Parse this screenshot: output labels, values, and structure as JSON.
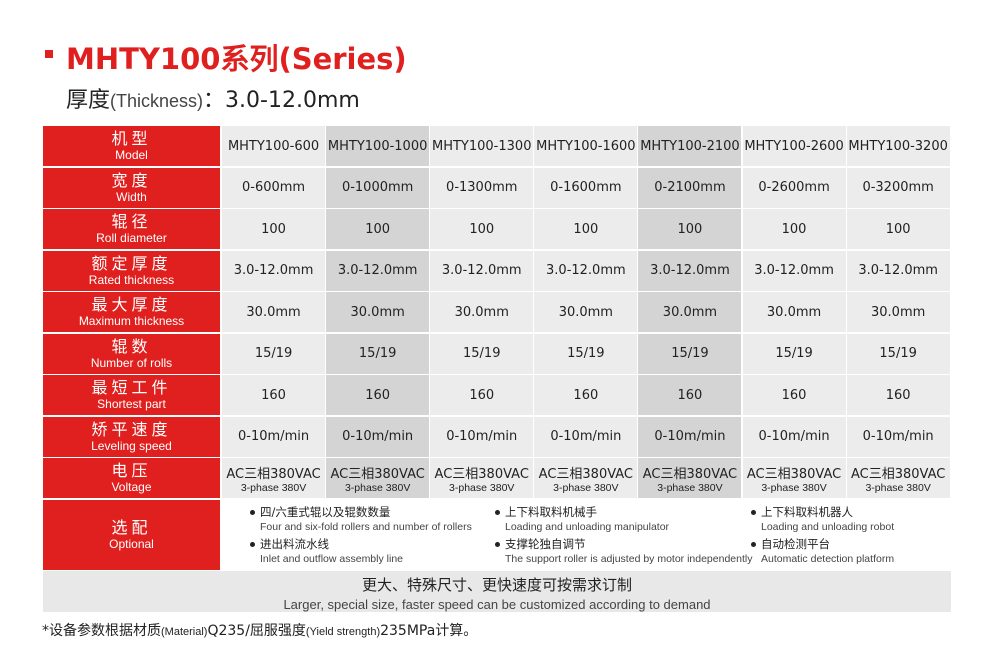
{
  "header": {
    "title": "MHTY100系列(Series)",
    "subtitle": {
      "zh": "厚度",
      "en": "(Thickness)",
      "value": "：3.0-12.0mm"
    }
  },
  "table": {
    "rows": [
      {
        "label_zh": "机型",
        "label_en": "Model",
        "cells": [
          "MHTY100-600",
          "MHTY100-1000",
          "MHTY100-1300",
          "MHTY100-1600",
          "MHTY100-2100",
          "MHTY100-2600",
          "MHTY100-3200"
        ]
      },
      {
        "label_zh": "宽度",
        "label_en": "Width",
        "cells": [
          "0-600mm",
          "0-1000mm",
          "0-1300mm",
          "0-1600mm",
          "0-2100mm",
          "0-2600mm",
          "0-3200mm"
        ]
      },
      {
        "label_zh": "辊径",
        "label_en": "Roll diameter",
        "cells": [
          "100",
          "100",
          "100",
          "100",
          "100",
          "100",
          "100"
        ]
      },
      {
        "label_zh": "额定厚度",
        "label_en": "Rated thickness",
        "cells": [
          "3.0-12.0mm",
          "3.0-12.0mm",
          "3.0-12.0mm",
          "3.0-12.0mm",
          "3.0-12.0mm",
          "3.0-12.0mm",
          "3.0-12.0mm"
        ]
      },
      {
        "label_zh": "最大厚度",
        "label_en": "Maximum thickness",
        "cells": [
          "30.0mm",
          "30.0mm",
          "30.0mm",
          "30.0mm",
          "30.0mm",
          "30.0mm",
          "30.0mm"
        ]
      },
      {
        "label_zh": "辊数",
        "label_en": "Number of rolls",
        "cells": [
          "15/19",
          "15/19",
          "15/19",
          "15/19",
          "15/19",
          "15/19",
          "15/19"
        ]
      },
      {
        "label_zh": "最短工件",
        "label_en": "Shortest part",
        "cells": [
          "160",
          "160",
          "160",
          "160",
          "160",
          "160",
          "160"
        ]
      },
      {
        "label_zh": "矫平速度",
        "label_en": "Leveling speed",
        "cells": [
          "0-10m/min",
          "0-10m/min",
          "0-10m/min",
          "0-10m/min",
          "0-10m/min",
          "0-10m/min",
          "0-10m/min"
        ]
      },
      {
        "label_zh": "电压",
        "label_en": "Voltage",
        "cells": [
          {
            "main": "AC三相380VAC",
            "sub": "3-phase 380V"
          },
          {
            "main": "AC三相380VAC",
            "sub": "3-phase 380V"
          },
          {
            "main": "AC三相380VAC",
            "sub": "3-phase 380V"
          },
          {
            "main": "AC三相380VAC",
            "sub": "3-phase 380V"
          },
          {
            "main": "AC三相380VAC",
            "sub": "3-phase 380V"
          },
          {
            "main": "AC三相380VAC",
            "sub": "3-phase 380V"
          },
          {
            "main": "AC三相380VAC",
            "sub": "3-phase 380V"
          }
        ]
      }
    ],
    "optional": {
      "label_zh": "选配",
      "label_en": "Optional",
      "items": [
        {
          "zh": "四/六重式辊以及辊数数量",
          "en": "Four and six-fold rollers and number of rollers"
        },
        {
          "zh": "上下料取料机械手",
          "en": "Loading and unloading manipulator"
        },
        {
          "zh": "上下料取料机器人",
          "en": "Loading and unloading robot"
        },
        {
          "zh": "进出料流水线",
          "en": "Inlet and outflow assembly line"
        },
        {
          "zh": "支撑轮独自调节",
          "en": "The support roller is adjusted by motor independently"
        },
        {
          "zh": "自动检测平台",
          "en": "Automatic detection platform"
        }
      ]
    },
    "footer": {
      "zh": "更大、特殊尺寸、更快速度可按需求订制",
      "en": "Larger, special size, faster speed can be customized according to demand"
    }
  },
  "note": [
    "*设备参数根据材质",
    "(Material)",
    "Q235/屈服强度",
    "(Yield strength)",
    "235MPa计算。"
  ]
}
